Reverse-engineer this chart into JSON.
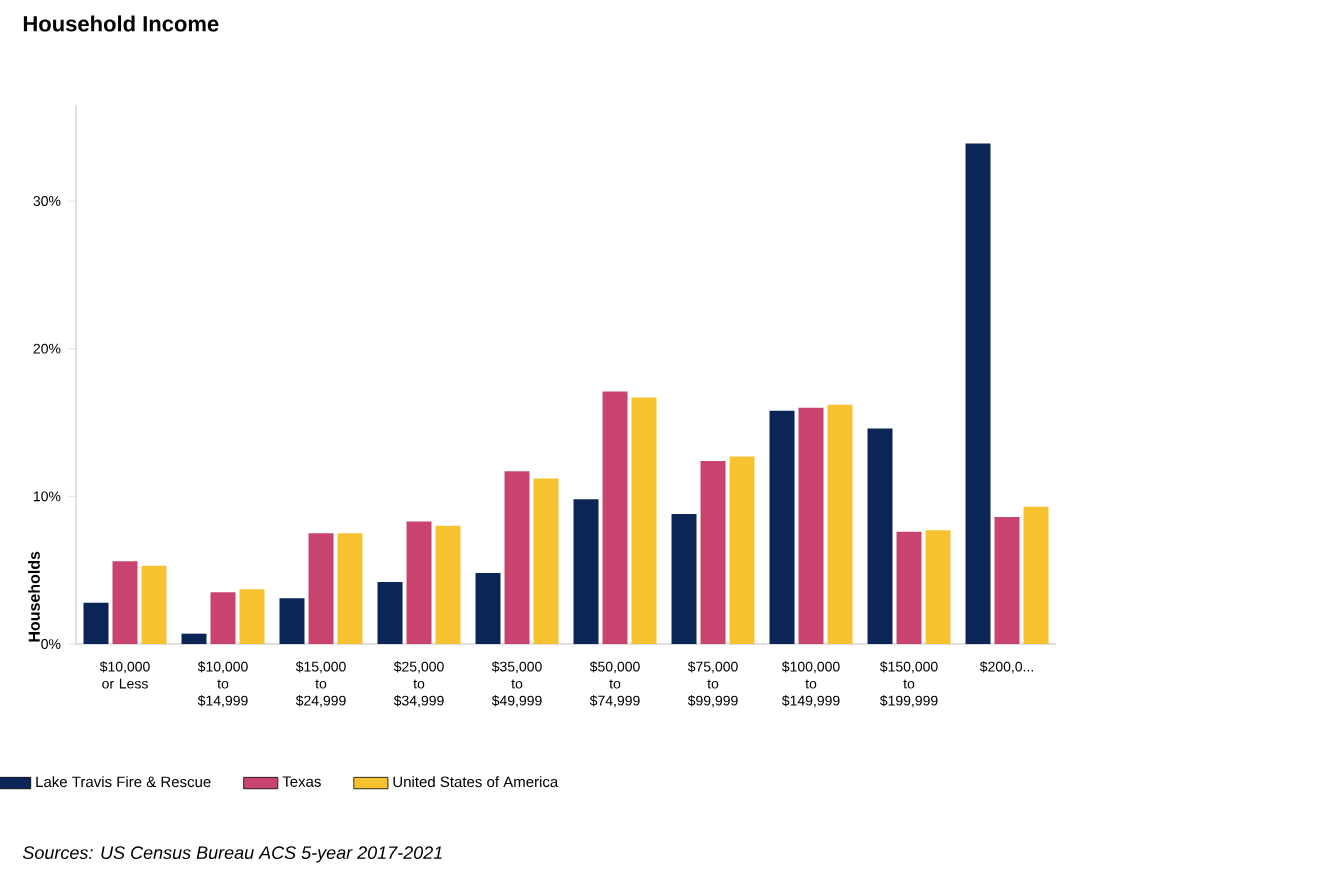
{
  "chart_data": {
    "type": "bar",
    "title": "Household Income",
    "ylabel": "Households",
    "categories": [
      "$10,000 or Less",
      "$10,000 to $14,999",
      "$15,000 to $24,999",
      "$25,000 to $34,999",
      "$35,000 to $49,999",
      "$50,000 to $74,999",
      "$75,000 to $99,999",
      "$100,000 to $149,999",
      "$150,000 to $199,999",
      "$200,0..."
    ],
    "series": [
      {
        "name": "Lake Travis Fire & Rescue",
        "color": "#0b2557",
        "values": [
          2.8,
          0.7,
          3.1,
          4.2,
          4.8,
          9.8,
          8.8,
          15.8,
          14.6,
          33.9
        ]
      },
      {
        "name": "Texas",
        "color": "#c8446e",
        "values": [
          5.6,
          3.5,
          7.5,
          8.3,
          11.7,
          17.1,
          12.4,
          16.0,
          7.6,
          8.6
        ]
      },
      {
        "name": "United States of America",
        "color": "#f7c22f",
        "values": [
          5.3,
          3.7,
          7.5,
          8.0,
          11.2,
          16.7,
          12.7,
          16.2,
          7.7,
          9.3
        ]
      }
    ],
    "ylim": [
      0,
      36.5
    ],
    "yticks": [
      {
        "value": 0,
        "label": "0%"
      },
      {
        "value": 10,
        "label": "10%"
      },
      {
        "value": 20,
        "label": "20%"
      },
      {
        "value": 30,
        "label": "30%"
      }
    ],
    "legend": "bottom",
    "annotations": [
      "Sources: US Census Bureau ACS 5-year 2017-2021"
    ]
  }
}
